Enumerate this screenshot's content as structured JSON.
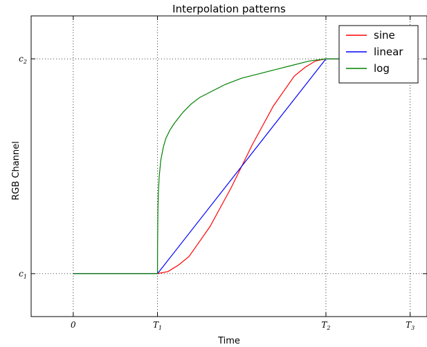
{
  "chart_data": {
    "type": "line",
    "title": "Interpolation patterns",
    "xlabel": "Time",
    "ylabel": "RGB Channel",
    "xlim": [
      -0.5,
      4.2
    ],
    "ylim": [
      -0.2,
      1.2
    ],
    "grid": true,
    "legend_position": "top-right",
    "x_ticks": [
      {
        "value": 0,
        "main": "0",
        "sub": ""
      },
      {
        "value": 1,
        "main": "T",
        "sub": "1"
      },
      {
        "value": 3,
        "main": "T",
        "sub": "2"
      },
      {
        "value": 4,
        "main": "T",
        "sub": "3"
      }
    ],
    "y_ticks": [
      {
        "value": 0,
        "main": "c",
        "sub": "1"
      },
      {
        "value": 1,
        "main": "c",
        "sub": "2"
      }
    ],
    "series": [
      {
        "name": "sine",
        "color": "#ff0000",
        "x": [
          0,
          1,
          1.125,
          1.25,
          1.375,
          1.5,
          1.625,
          1.75,
          1.875,
          2,
          2.125,
          2.25,
          2.375,
          2.5,
          2.625,
          2.75,
          2.875,
          3,
          4
        ],
        "y": [
          0,
          0,
          0.01,
          0.04,
          0.08,
          0.15,
          0.22,
          0.31,
          0.4,
          0.5,
          0.6,
          0.69,
          0.78,
          0.85,
          0.92,
          0.96,
          0.99,
          1,
          1
        ]
      },
      {
        "name": "linear",
        "color": "#0000ff",
        "x": [
          0,
          1,
          3,
          4
        ],
        "y": [
          0,
          0,
          1,
          1
        ]
      },
      {
        "name": "log",
        "color": "#008000",
        "x": [
          0,
          1,
          1.001,
          1.005,
          1.01,
          1.02,
          1.04,
          1.07,
          1.1,
          1.15,
          1.2,
          1.3,
          1.4,
          1.5,
          1.6,
          1.8,
          2,
          2.2,
          2.4,
          2.6,
          2.8,
          3,
          4
        ],
        "y": [
          0,
          0,
          0.13,
          0.3,
          0.37,
          0.45,
          0.53,
          0.59,
          0.63,
          0.67,
          0.7,
          0.75,
          0.79,
          0.82,
          0.84,
          0.88,
          0.91,
          0.93,
          0.95,
          0.97,
          0.99,
          1,
          1
        ]
      }
    ]
  }
}
